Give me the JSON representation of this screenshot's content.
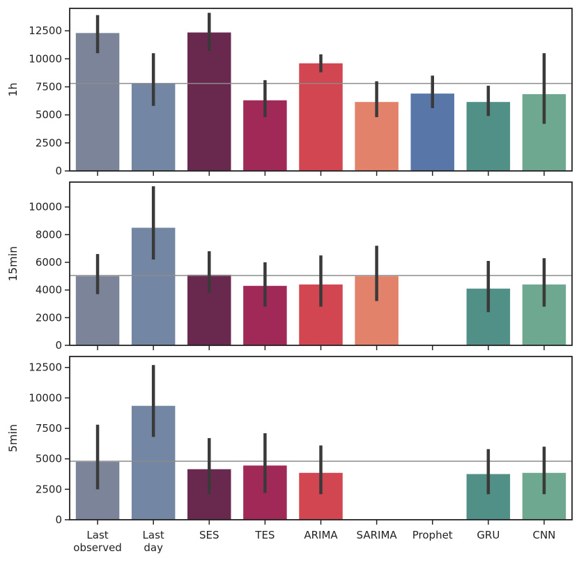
{
  "chart_data": {
    "type": "bar",
    "categories": [
      "Last observed",
      "Last day",
      "SES",
      "TES",
      "ARIMA",
      "SARIMA",
      "Prophet",
      "GRU",
      "CNN"
    ],
    "category_label_lines": [
      [
        "Last",
        "observed"
      ],
      [
        "Last",
        "day"
      ],
      [
        "SES"
      ],
      [
        "TES"
      ],
      [
        "ARIMA"
      ],
      [
        "SARIMA"
      ],
      [
        "Prophet"
      ],
      [
        "GRU"
      ],
      [
        "CNN"
      ]
    ],
    "colors": [
      "#7b8499",
      "#7386a3",
      "#69294f",
      "#a02958",
      "#d24652",
      "#e3826a",
      "#5876a7",
      "#519087",
      "#6fa890"
    ],
    "errorbar_color": "#3a3a3a",
    "reference_line_color": "#8c8c8c",
    "panels": [
      {
        "ylabel": "1h",
        "ylim": [
          0,
          14500
        ],
        "yticks": [
          0,
          2500,
          5000,
          7500,
          10000,
          12500
        ],
        "reference_value": 7800,
        "values": [
          12300,
          7800,
          12350,
          6300,
          9600,
          6150,
          6900,
          6150,
          6850
        ],
        "err_low": [
          10500,
          5800,
          10700,
          4800,
          8800,
          4800,
          5600,
          4900,
          4200
        ],
        "err_high": [
          13900,
          10500,
          14100,
          8100,
          10400,
          8000,
          8500,
          7600,
          10500
        ]
      },
      {
        "ylabel": "15min",
        "ylim": [
          0,
          11800
        ],
        "yticks": [
          0,
          2000,
          4000,
          6000,
          8000,
          10000
        ],
        "reference_value": 5050,
        "values": [
          5000,
          8500,
          5100,
          4300,
          4400,
          5000,
          null,
          4100,
          4400
        ],
        "err_low": [
          3700,
          6200,
          3800,
          2800,
          2800,
          3200,
          null,
          2400,
          2800
        ],
        "err_high": [
          6600,
          11500,
          6800,
          6000,
          6500,
          7200,
          null,
          6100,
          6300
        ]
      },
      {
        "ylabel": "5min",
        "ylim": [
          0,
          13400
        ],
        "yticks": [
          0,
          2500,
          5000,
          7500,
          10000,
          12500
        ],
        "reference_value": 4800,
        "values": [
          4750,
          9350,
          4150,
          4450,
          3850,
          null,
          null,
          3750,
          3850
        ],
        "err_low": [
          2500,
          6800,
          2100,
          2200,
          2100,
          null,
          null,
          2100,
          2100
        ],
        "err_high": [
          7800,
          12700,
          6700,
          7100,
          6100,
          null,
          null,
          5800,
          6000
        ]
      }
    ]
  }
}
